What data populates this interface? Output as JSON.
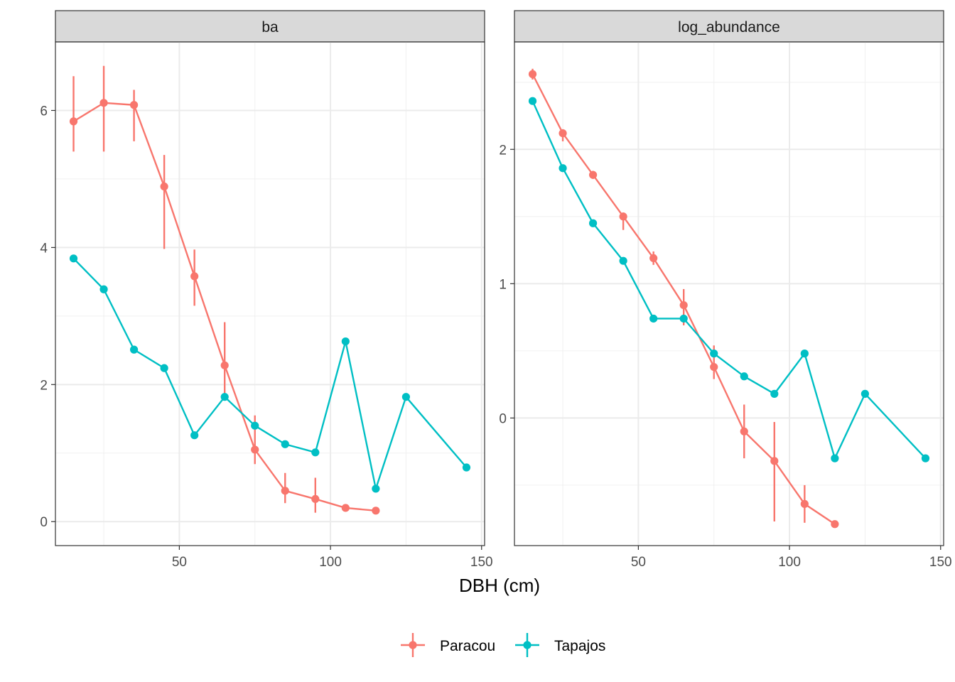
{
  "chart_data": {
    "type": "line",
    "xlabel": "DBH (cm)",
    "legend": {
      "position": "bottom",
      "entries": [
        "Paracou",
        "Tapajos"
      ]
    },
    "colors": {
      "Paracou": "#F8766D",
      "Tapajos": "#00BFC4"
    },
    "grid": true,
    "x_ticks": [
      50,
      100,
      150
    ],
    "panels": [
      {
        "title": "ba",
        "xlim": [
          9,
          151
        ],
        "ylim": [
          -0.35,
          7.0
        ],
        "y_ticks": [
          0,
          2,
          4,
          6
        ],
        "series": [
          {
            "name": "Paracou",
            "x": [
              15,
              25,
              35,
              45,
              55,
              65,
              75,
              85,
              95,
              105,
              115
            ],
            "y": [
              5.84,
              6.11,
              6.08,
              4.89,
              3.58,
              2.28,
              1.05,
              0.45,
              0.33,
              0.2,
              0.16
            ],
            "ymin": [
              5.4,
              5.4,
              5.55,
              3.98,
              3.15,
              1.85,
              0.84,
              0.27,
              0.13,
              null,
              null
            ],
            "ymax": [
              6.5,
              6.65,
              6.3,
              5.35,
              3.97,
              2.91,
              1.55,
              0.71,
              0.64,
              null,
              null
            ]
          },
          {
            "name": "Tapajos",
            "x": [
              15,
              25,
              35,
              45,
              55,
              65,
              75,
              85,
              95,
              105,
              115,
              125,
              145
            ],
            "y": [
              3.84,
              3.39,
              2.51,
              2.24,
              1.26,
              1.82,
              1.4,
              1.13,
              1.01,
              2.63,
              0.48,
              1.82,
              0.79
            ]
          }
        ]
      },
      {
        "title": "log_abundance",
        "xlim": [
          9,
          151
        ],
        "ylim": [
          -0.95,
          2.8
        ],
        "y_ticks": [
          0,
          1,
          2
        ],
        "series": [
          {
            "name": "Paracou",
            "x": [
              15,
              25,
              35,
              45,
              55,
              65,
              75,
              85,
              95,
              105,
              115
            ],
            "y": [
              2.56,
              2.12,
              1.81,
              1.5,
              1.19,
              0.84,
              0.38,
              -0.1,
              -0.32,
              -0.64,
              -0.79
            ],
            "ymin": [
              2.52,
              2.06,
              1.78,
              1.4,
              1.14,
              0.69,
              0.29,
              -0.3,
              -0.77,
              -0.78,
              null
            ],
            "ymax": [
              2.6,
              2.15,
              1.84,
              1.53,
              1.24,
              0.96,
              0.54,
              0.1,
              -0.03,
              -0.5,
              null
            ]
          },
          {
            "name": "Tapajos",
            "x": [
              15,
              25,
              35,
              45,
              55,
              65,
              75,
              85,
              95,
              105,
              115,
              125,
              145
            ],
            "y": [
              2.36,
              1.86,
              1.45,
              1.17,
              0.74,
              0.74,
              0.48,
              0.31,
              0.18,
              0.48,
              -0.3,
              0.18,
              -0.3
            ]
          }
        ]
      }
    ]
  }
}
